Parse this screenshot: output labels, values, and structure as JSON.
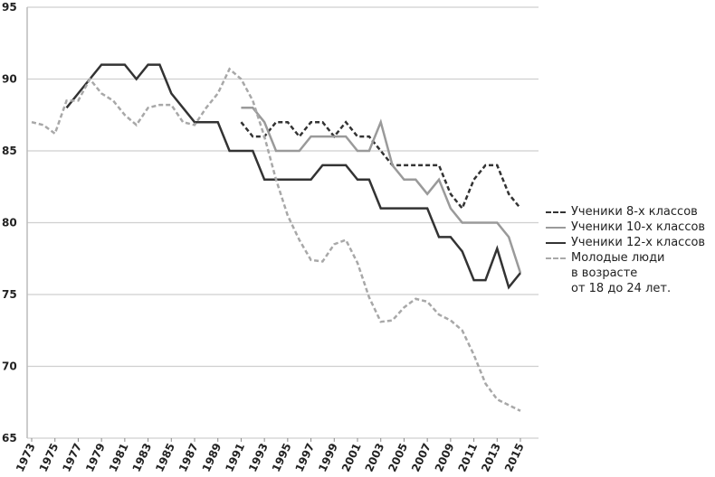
{
  "chart_data": {
    "type": "line",
    "x": [
      1973,
      1974,
      1975,
      1976,
      1977,
      1978,
      1979,
      1980,
      1981,
      1982,
      1983,
      1984,
      1985,
      1986,
      1987,
      1988,
      1989,
      1990,
      1991,
      1992,
      1993,
      1994,
      1995,
      1996,
      1997,
      1998,
      1999,
      2000,
      2001,
      2002,
      2003,
      2004,
      2005,
      2006,
      2007,
      2008,
      2009,
      2010,
      2011,
      2012,
      2013,
      2014,
      2015
    ],
    "xlim": [
      1973,
      2015
    ],
    "xticks": [
      1973,
      1975,
      1977,
      1979,
      1981,
      1983,
      1985,
      1987,
      1989,
      1991,
      1993,
      1995,
      1997,
      1999,
      2001,
      2003,
      2005,
      2007,
      2009,
      2011,
      2013,
      2015
    ],
    "ylim": [
      65,
      95
    ],
    "yticks": [
      65,
      70,
      75,
      80,
      85,
      90,
      95
    ],
    "grid": true,
    "legend": "right",
    "series": [
      {
        "name": "Ученики 8-х классов",
        "color": "#333333",
        "dash": "dashed",
        "values": [
          null,
          null,
          null,
          null,
          null,
          null,
          null,
          null,
          null,
          null,
          null,
          null,
          null,
          null,
          null,
          null,
          null,
          null,
          87,
          86,
          86,
          87,
          87,
          86,
          87,
          87,
          86,
          87,
          86,
          86,
          85,
          84,
          84,
          84,
          84,
          84,
          82,
          81,
          83,
          84,
          84,
          82,
          81
        ]
      },
      {
        "name": "Ученики 10-х классов",
        "color": "#9a9a9a",
        "dash": "solid",
        "values": [
          null,
          null,
          null,
          null,
          null,
          null,
          null,
          null,
          null,
          null,
          null,
          null,
          null,
          null,
          null,
          null,
          null,
          null,
          88,
          88,
          87,
          85,
          85,
          85,
          86,
          86,
          86,
          86,
          85,
          85,
          87,
          84,
          83,
          83,
          82,
          83,
          81,
          80,
          80,
          80,
          80,
          79,
          76.5
        ]
      },
      {
        "name": "Ученики 12-х классов",
        "color": "#333333",
        "dash": "solid",
        "values": [
          null,
          null,
          null,
          88,
          89,
          90,
          91,
          91,
          91,
          90,
          91,
          91,
          89,
          88,
          87,
          87,
          87,
          85,
          85,
          85,
          83,
          83,
          83,
          83,
          83,
          84,
          84,
          84,
          83,
          83,
          81,
          81,
          81,
          81,
          81,
          79,
          79,
          78,
          76,
          76,
          78.2,
          75.5,
          76.5
        ]
      },
      {
        "name": "Молодые люди\nв возрасте\nот 18 до 24 лет.",
        "color": "#a8a8a8",
        "dash": "dashed",
        "values": [
          87,
          86.8,
          86.2,
          88.5,
          88.5,
          90,
          89,
          88.5,
          87.5,
          86.8,
          88,
          88.2,
          88.2,
          87,
          86.8,
          88,
          89,
          90.7,
          90,
          88.5,
          86,
          83,
          80.5,
          78.8,
          77.4,
          77.3,
          78.5,
          78.8,
          77.2,
          74.8,
          73.1,
          73.2,
          74.1,
          74.7,
          74.5,
          73.6,
          73.2,
          72.5,
          70.8,
          68.8,
          67.7,
          67.3,
          66.9
        ]
      }
    ]
  }
}
